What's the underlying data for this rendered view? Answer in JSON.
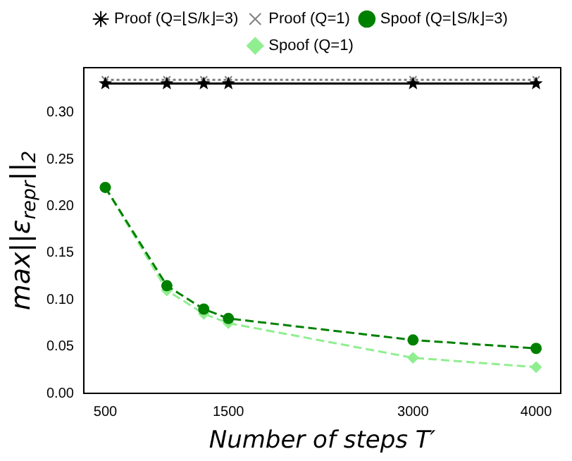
{
  "chart_data": {
    "type": "line",
    "xlabel": "Number of steps T′",
    "ylabel": "max||ε$_{repr}$||$_{2}$",
    "x": [
      500,
      1000,
      1300,
      1500,
      3000,
      4000
    ],
    "series": [
      {
        "name": "Spoof (Q=1)",
        "color": "#90ee90",
        "marker": "diamond",
        "line_style": "dashed",
        "values": [
          0.22,
          0.11,
          0.085,
          0.075,
          0.038,
          0.028
        ]
      },
      {
        "name": "Spoof (Q=⌊S/k⌋=3)",
        "color": "#008000",
        "marker": "circle",
        "line_style": "dashed",
        "values": [
          0.22,
          0.115,
          0.09,
          0.08,
          0.057,
          0.048
        ]
      },
      {
        "name": "Proof (Q=1)",
        "color": "#808080",
        "marker": "cross",
        "line_style": "dotted",
        "values": [
          0.335,
          0.335,
          0.335,
          0.335,
          0.335,
          0.335
        ]
      },
      {
        "name": "Proof (Q=⌊S/k⌋=3)",
        "color": "#000000",
        "marker": "star",
        "line_style": "solid",
        "values": [
          0.331,
          0.331,
          0.331,
          0.331,
          0.331,
          0.331
        ]
      }
    ],
    "xlim": [
      325,
      4200
    ],
    "xticks": [
      500,
      1500,
      3000,
      4000
    ],
    "ylim": [
      0,
      0.348
    ],
    "yticks": [
      {
        "value": 0,
        "label": "0.00"
      },
      {
        "value": 0.05,
        "label": "0.05"
      },
      {
        "value": 0.1,
        "label": "0.10"
      },
      {
        "value": 0.15,
        "label": "0.15"
      },
      {
        "value": 0.2,
        "label": "0.20"
      },
      {
        "value": 0.25,
        "label": "0.25"
      },
      {
        "value": 0.3,
        "label": "0.30"
      }
    ],
    "grid": false,
    "legend": "top"
  }
}
